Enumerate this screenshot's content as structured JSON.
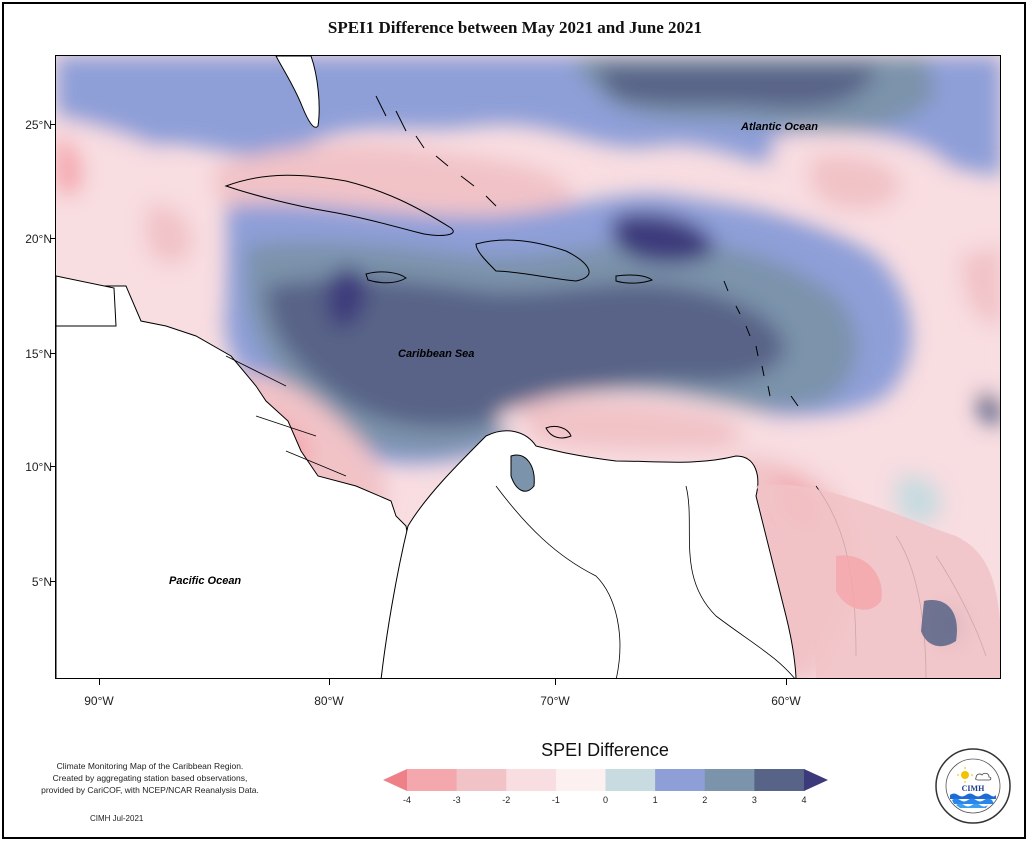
{
  "title": "SPEI1 Difference between May 2021 and June 2021",
  "map": {
    "labels": {
      "atlantic": "Atlantic Ocean",
      "caribbean": "Caribbean Sea",
      "pacific": "Pacific Ocean"
    },
    "lat_ticks": [
      "25°N",
      "20°N",
      "15°N",
      "10°N",
      "5°N"
    ],
    "lon_ticks": [
      "90°W",
      "80°W",
      "70°W",
      "60°W"
    ],
    "colors": {
      "strong_dry": "#ee8088",
      "dry": "#f4a7ad",
      "mild_dry": "#f1c3c7",
      "slight_dry": "#f8dde1",
      "near_normal": "#fdf0f0",
      "slight_wet": "#c8dbe0",
      "wet": "#8e9fd8",
      "very_wet": "#7b93ab",
      "extreme_wet": "#586487",
      "max_wet": "#3d3a7c",
      "land": "#ffffff"
    }
  },
  "legend": {
    "title": "SPEI Difference",
    "ticks": [
      "-4",
      "-3",
      "-2",
      "-1",
      "0",
      "1",
      "2",
      "3",
      "4"
    ],
    "colors": [
      "#ee8088",
      "#f4a7ad",
      "#f1c3c7",
      "#f8dde1",
      "#fdf0f0",
      "#c8dbe0",
      "#8e9fd8",
      "#7b93ab",
      "#586487",
      "#3d3a7c"
    ]
  },
  "credit": {
    "line1": "Climate Monitoring Map of the Caribbean Region.",
    "line2": "Created by aggregating station based observations,",
    "line3": "provided by CariCOF, with NCEP/NCAR Reanalysis Data.",
    "stamp": "CIMH Jul-2021"
  },
  "logo": {
    "text": "CIMH"
  }
}
